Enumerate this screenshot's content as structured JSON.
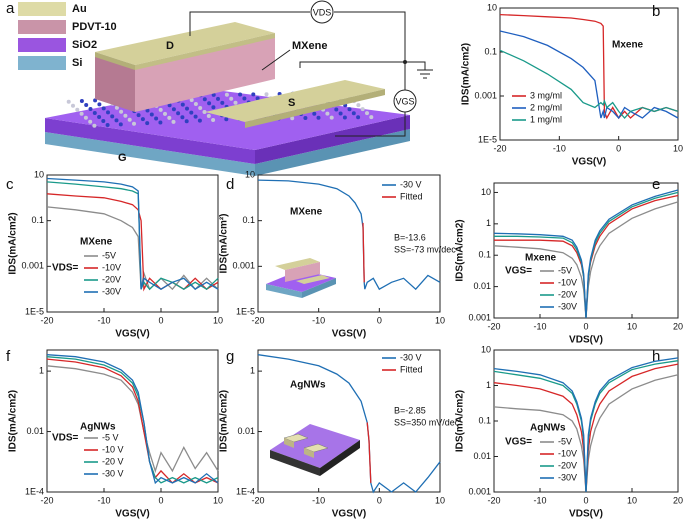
{
  "schematic": {
    "panel": "a",
    "legend": [
      "Au",
      "PDVT-10",
      "SiO2",
      "Si"
    ],
    "drain": "D",
    "source": "S",
    "gate": "G",
    "channel": "MXene",
    "vds": "VDS",
    "vgs": "VGS"
  },
  "chart_data": [
    {
      "type": "line",
      "panel": "b",
      "title": "Mxene",
      "x_label": "VGS(V)",
      "y_label": "IDS(mA/cm2)",
      "log_y": true,
      "xlim": [
        -20,
        10
      ],
      "xticks": [
        -20,
        -10,
        0,
        10
      ],
      "ylim": [
        1e-05,
        10
      ],
      "yticks": [
        10,
        0.1,
        0.001,
        {
          "value": 1e-05,
          "label": "1E-5"
        }
      ],
      "x": [
        -20,
        -16,
        -12,
        -8,
        -6,
        -4,
        -3,
        -2.6,
        -2.4,
        -2,
        -1,
        0,
        1,
        2,
        4,
        6,
        8,
        10
      ],
      "series": [
        {
          "name": "3 mg/ml",
          "color": "#d62728",
          "values": [
            5,
            4.5,
            4,
            3.5,
            3,
            2.5,
            2,
            1.5,
            0.0002,
            0.0001,
            0.0003,
            0.0001,
            0.0002,
            0.0001,
            0.0003,
            0.0002,
            0.0003,
            0.0002
          ]
        },
        {
          "name": "2 mg/ml",
          "color": "#1f5fbf",
          "values": [
            0.9,
            0.5,
            0.2,
            0.05,
            0.02,
            0.005,
            0.0001,
            0.0002,
            0.0001,
            0.0003,
            0.0002,
            0.0001,
            0.0003,
            0.0002,
            0.0001,
            0.0003,
            0.0002,
            0.0001
          ]
        },
        {
          "name": "1 mg/ml",
          "color": "#1a9a8a",
          "values": [
            0.12,
            0.04,
            0.01,
            0.002,
            0.0005,
            0.0003,
            0.0005,
            0.0004,
            0.0006,
            0.0003,
            0.0005,
            0.0002,
            0.0001,
            0.0002,
            0.0003,
            0.0002,
            0.0003,
            0.0002
          ]
        }
      ]
    },
    {
      "type": "line",
      "panel": "c",
      "title": "MXene",
      "legend_title": "VDS=",
      "x_label": "VGS(V)",
      "y_label": "IDS(mA/cm2)",
      "log_y": true,
      "xlim": [
        -20,
        10
      ],
      "xticks": [
        -20,
        -10,
        0,
        10
      ],
      "ylim": [
        1e-05,
        10
      ],
      "yticks": [
        10,
        0.1,
        0.001,
        {
          "value": 1e-05,
          "label": "1E-5"
        }
      ],
      "x": [
        -20,
        -15,
        -10,
        -7,
        -5,
        -4,
        -3.5,
        -3,
        -2,
        0,
        2,
        4,
        6,
        8,
        10
      ],
      "series": [
        {
          "name": "-5V",
          "color": "#8c8c8c",
          "values": [
            0.4,
            0.3,
            0.2,
            0.1,
            0.05,
            0.02,
            0.0001,
            0.0005,
            0.0001,
            0.0003,
            0.0001,
            0.0004,
            0.0001,
            0.0003,
            0.0001
          ]
        },
        {
          "name": "-10V",
          "color": "#d62728",
          "values": [
            1.5,
            1.2,
            1,
            0.7,
            0.5,
            0.3,
            0.1,
            0.0001,
            0.0003,
            0.0001,
            0.0002,
            0.0001,
            0.0003,
            0.0001,
            0.0002
          ]
        },
        {
          "name": "-20V",
          "color": "#1a9a8a",
          "values": [
            5,
            4,
            3,
            2.5,
            2,
            1.5,
            0.0001,
            0.0002,
            0.0001,
            0.0003,
            0.0002,
            0.0001,
            0.0002,
            0.0001,
            0.0003
          ]
        },
        {
          "name": "-30V",
          "color": "#1f6fb4",
          "values": [
            7,
            6,
            5,
            4,
            3,
            2,
            0.0001,
            0.0003,
            0.0002,
            0.0001,
            0.0002,
            0.0003,
            0.0001,
            0.0002,
            0.0001
          ]
        }
      ]
    },
    {
      "type": "line",
      "panel": "d",
      "title": "MXene",
      "annotations": [
        "B=-13.6",
        "SS=-73 mv/dec"
      ],
      "x_label": "VGS(V)",
      "y_label": "IDS(mA/cm²)",
      "log_y": true,
      "xlim": [
        -20,
        10
      ],
      "xticks": [
        -20,
        -10,
        0,
        10
      ],
      "ylim": [
        1e-05,
        10
      ],
      "yticks": [
        10,
        0.1,
        0.001,
        {
          "value": 1e-05,
          "label": "1E-5"
        }
      ],
      "x": [
        -20,
        -15,
        -10,
        -7,
        -5,
        -4,
        -3,
        -2.7,
        -2.5,
        -2.4,
        -2,
        -1,
        0,
        2,
        4,
        6,
        8,
        10
      ],
      "series": [
        {
          "name": "-30 V",
          "color": "#1f6fb4",
          "values": [
            6,
            5.5,
            4,
            2.5,
            1.2,
            0.6,
            0.2,
            0.05,
            0.0002,
            0.0001,
            0.0002,
            0.0003,
            0.0001,
            0.0002,
            0.0003,
            0.0001,
            0.0004,
            0.0002
          ]
        },
        {
          "name": "Fitted",
          "color": "#d62728",
          "values": [
            null,
            null,
            null,
            null,
            null,
            null,
            null,
            0.08,
            0.0002,
            null,
            null,
            null,
            null,
            null,
            null,
            null,
            null,
            null
          ]
        }
      ]
    },
    {
      "type": "line",
      "panel": "e",
      "title": "Mxene",
      "legend_title": "VGS=",
      "x_label": "VDS(V)",
      "y_label": "IDS(mA/cm2)",
      "log_y": true,
      "xlim": [
        -20,
        20
      ],
      "xticks": [
        -20,
        -10,
        0,
        10,
        20
      ],
      "ylim": [
        0.001,
        20
      ],
      "yticks": [
        10,
        1,
        0.1,
        0.01,
        0.001
      ],
      "x": [
        -20,
        -15,
        -10,
        -5,
        -3,
        -2,
        -1,
        -0.5,
        0,
        0.5,
        1,
        2,
        3,
        5,
        10,
        15,
        20
      ],
      "series": [
        {
          "name": "-5V",
          "color": "#8c8c8c",
          "values": [
            0.2,
            0.18,
            0.16,
            0.12,
            0.08,
            0.05,
            0.02,
            0.008,
            0.001,
            0.01,
            0.03,
            0.1,
            0.2,
            0.5,
            1.5,
            3,
            5
          ]
        },
        {
          "name": "-10V",
          "color": "#d62728",
          "values": [
            0.3,
            0.3,
            0.3,
            0.28,
            0.2,
            0.12,
            0.05,
            0.02,
            0.001,
            0.02,
            0.06,
            0.2,
            0.4,
            1,
            3,
            5.5,
            8
          ]
        },
        {
          "name": "-20V",
          "color": "#1a9a8a",
          "values": [
            0.4,
            0.4,
            0.38,
            0.35,
            0.25,
            0.15,
            0.06,
            0.02,
            0.001,
            0.02,
            0.07,
            0.25,
            0.5,
            1.2,
            3.5,
            6.5,
            10
          ]
        },
        {
          "name": "-30V",
          "color": "#1f6fb4",
          "values": [
            0.5,
            0.48,
            0.45,
            0.4,
            0.3,
            0.18,
            0.07,
            0.025,
            0.001,
            0.025,
            0.08,
            0.3,
            0.6,
            1.4,
            4,
            7.5,
            12
          ]
        }
      ]
    },
    {
      "type": "line",
      "panel": "f",
      "title": "AgNWs",
      "legend_title": "VDS=",
      "x_label": "VGS(V)",
      "y_label": "IDS(mA/cm2)",
      "log_y": true,
      "xlim": [
        -20,
        10
      ],
      "xticks": [
        -20,
        -10,
        0,
        10
      ],
      "ylim": [
        0.0001,
        5
      ],
      "yticks": [
        1,
        0.01,
        {
          "value": 0.0001,
          "label": "1E-4"
        }
      ],
      "x": [
        -20,
        -15,
        -10,
        -7,
        -5,
        -4,
        -3,
        -2,
        -1,
        0,
        2,
        4,
        6,
        8,
        10
      ],
      "series": [
        {
          "name": "-5 V",
          "color": "#8c8c8c",
          "values": [
            1.5,
            1.2,
            0.8,
            0.5,
            0.2,
            0.08,
            0.01,
            0.002,
            0.0005,
            0.002,
            0.0005,
            0.003,
            0.0006,
            0.002,
            0.0005
          ]
        },
        {
          "name": "-10 V",
          "color": "#d62728",
          "values": [
            2.5,
            2,
            1.3,
            0.7,
            0.3,
            0.1,
            0.01,
            0.001,
            0.0003,
            0.0005,
            0.0002,
            0.0004,
            0.0002,
            0.0003,
            0.0002
          ]
        },
        {
          "name": "-20 V",
          "color": "#1a9a8a",
          "values": [
            3,
            2.5,
            1.6,
            0.9,
            0.4,
            0.15,
            0.02,
            0.001,
            0.0003,
            0.0002,
            0.0003,
            0.0002,
            0.0003,
            0.0002,
            0.0003
          ]
        },
        {
          "name": "-30 V",
          "color": "#1f6fb4",
          "values": [
            3.5,
            3,
            2,
            1.1,
            0.5,
            0.2,
            0.02,
            0.001,
            0.0002,
            0.0003,
            0.0002,
            0.0003,
            0.0002,
            0.0004,
            0.0002
          ]
        }
      ]
    },
    {
      "type": "line",
      "panel": "g",
      "title": "AgNWs",
      "annotations": [
        "B=-2.85",
        "SS=350 mV/dec"
      ],
      "x_label": "VGS(V)",
      "y_label": "IDS(mA/cm2)",
      "log_y": true,
      "xlim": [
        -20,
        10
      ],
      "xticks": [
        -20,
        -10,
        0,
        10
      ],
      "ylim": [
        0.0001,
        5
      ],
      "yticks": [
        1,
        0.01,
        {
          "value": 0.0001,
          "label": "1E-4"
        }
      ],
      "x": [
        -20,
        -15,
        -10,
        -7,
        -5,
        -3,
        -2,
        -1.7,
        -1.4,
        -1,
        0,
        2,
        4,
        6,
        8,
        10
      ],
      "series": [
        {
          "name": "-30 V",
          "color": "#1f6fb4",
          "values": [
            3.5,
            2.5,
            1.5,
            0.8,
            0.4,
            0.1,
            0.02,
            0.005,
            0.0002,
            0.0001,
            0.0002,
            0.0001,
            0.0002,
            0.0001,
            0.0003,
            0.001
          ]
        },
        {
          "name": "Fitted",
          "color": "#d62728",
          "values": [
            null,
            null,
            null,
            null,
            null,
            null,
            0.02,
            0.005,
            0.0002,
            null,
            null,
            null,
            null,
            null,
            null,
            null
          ]
        }
      ]
    },
    {
      "type": "line",
      "panel": "h",
      "title": "AgNWs",
      "legend_title": "VGS=",
      "x_label": "VDS(V)",
      "y_label": "IDS(mA/cm2)",
      "log_y": true,
      "xlim": [
        -20,
        20
      ],
      "xticks": [
        -20,
        -10,
        0,
        10,
        20
      ],
      "ylim": [
        0.001,
        10
      ],
      "yticks": [
        10,
        1,
        0.1,
        0.01,
        0.001
      ],
      "x": [
        -20,
        -15,
        -10,
        -5,
        -3,
        -2,
        -1,
        -0.5,
        0,
        0.5,
        1,
        2,
        3,
        5,
        10,
        15,
        20
      ],
      "series": [
        {
          "name": "-5V",
          "color": "#8c8c8c",
          "values": [
            0.25,
            0.22,
            0.2,
            0.15,
            0.1,
            0.06,
            0.02,
            0.008,
            0.001,
            0.008,
            0.02,
            0.06,
            0.12,
            0.3,
            0.8,
            1.4,
            2
          ]
        },
        {
          "name": "-10V",
          "color": "#d62728",
          "values": [
            1.2,
            1,
            0.8,
            0.5,
            0.3,
            0.15,
            0.05,
            0.015,
            0.001,
            0.015,
            0.05,
            0.15,
            0.3,
            0.7,
            1.8,
            3,
            4
          ]
        },
        {
          "name": "-20V",
          "color": "#1a9a8a",
          "values": [
            2.5,
            2,
            1.6,
            1,
            0.6,
            0.3,
            0.1,
            0.03,
            0.001,
            0.03,
            0.1,
            0.3,
            0.6,
            1.2,
            2.8,
            4,
            5
          ]
        },
        {
          "name": "-30V",
          "color": "#1f6fb4",
          "values": [
            3,
            2.5,
            2,
            1.2,
            0.7,
            0.35,
            0.12,
            0.04,
            0.001,
            0.04,
            0.12,
            0.35,
            0.7,
            1.4,
            3.2,
            4.8,
            6
          ]
        }
      ]
    }
  ]
}
